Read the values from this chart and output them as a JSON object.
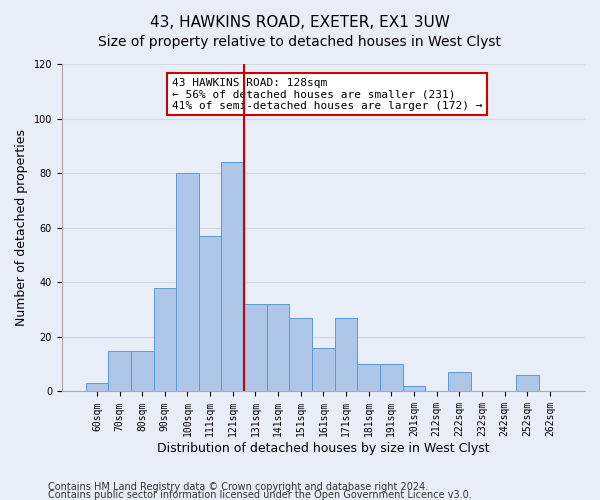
{
  "title": "43, HAWKINS ROAD, EXETER, EX1 3UW",
  "subtitle": "Size of property relative to detached houses in West Clyst",
  "xlabel": "Distribution of detached houses by size in West Clyst",
  "ylabel": "Number of detached properties",
  "categories": [
    "60sqm",
    "70sqm",
    "80sqm",
    "90sqm",
    "100sqm",
    "111sqm",
    "121sqm",
    "131sqm",
    "141sqm",
    "151sqm",
    "161sqm",
    "171sqm",
    "181sqm",
    "191sqm",
    "201sqm",
    "212sqm",
    "222sqm",
    "232sqm",
    "242sqm",
    "252sqm",
    "262sqm"
  ],
  "values": [
    3,
    15,
    15,
    38,
    80,
    57,
    84,
    32,
    32,
    27,
    16,
    27,
    10,
    10,
    2,
    0,
    7,
    0,
    0,
    6,
    0
  ],
  "bar_color": "#aec6e8",
  "bar_edge_color": "#5b9bd5",
  "ref_line_x": 128,
  "ref_line_color": "#cc0000",
  "annotation_text": "43 HAWKINS ROAD: 128sqm\n← 56% of detached houses are smaller (231)\n41% of semi-detached houses are larger (172) →",
  "annotation_box_color": "#ffffff",
  "annotation_box_edge_color": "#cc0000",
  "ylim": [
    0,
    120
  ],
  "yticks": [
    0,
    20,
    40,
    60,
    80,
    100,
    120
  ],
  "grid_color": "#d0d8e8",
  "background_color": "#e8eef8",
  "footer_line1": "Contains HM Land Registry data © Crown copyright and database right 2024.",
  "footer_line2": "Contains public sector information licensed under the Open Government Licence v3.0.",
  "title_fontsize": 11,
  "subtitle_fontsize": 10,
  "xlabel_fontsize": 9,
  "ylabel_fontsize": 9,
  "tick_fontsize": 7,
  "footer_fontsize": 7,
  "annotation_fontsize": 8
}
